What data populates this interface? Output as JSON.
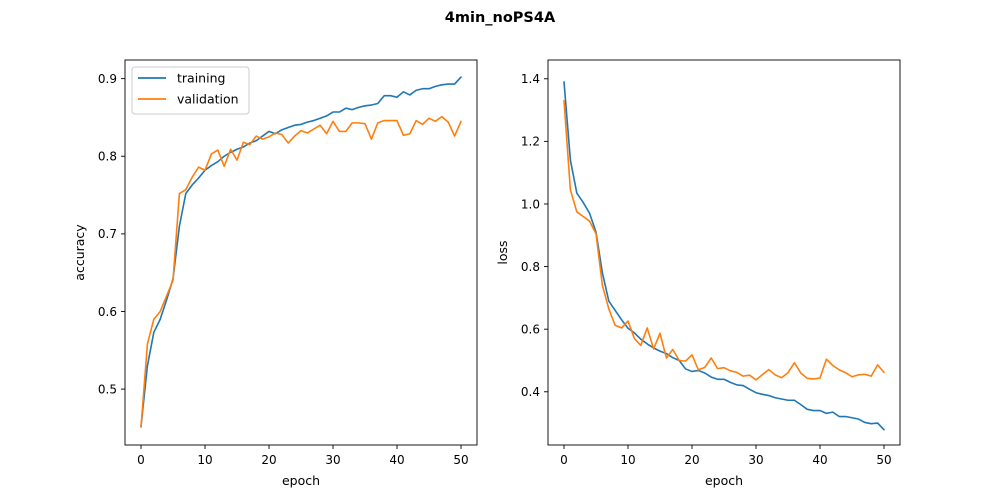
{
  "figure_title": "4min_noPS4A",
  "chart_data": [
    {
      "type": "line",
      "title": "",
      "xlabel": "epoch",
      "ylabel": "accuracy",
      "xlim": [
        -2.5,
        52.5
      ],
      "ylim": [
        0.428,
        0.924
      ],
      "xticks": [
        0,
        10,
        20,
        30,
        40,
        50
      ],
      "yticks": [
        0.5,
        0.6,
        0.7,
        0.8,
        0.9
      ],
      "ytick_labels": [
        "0.5",
        "0.6",
        "0.7",
        "0.8",
        "0.9"
      ],
      "grid": false,
      "legend": "upper-left",
      "x": [
        0,
        1,
        2,
        3,
        4,
        5,
        6,
        7,
        8,
        9,
        10,
        11,
        12,
        13,
        14,
        15,
        16,
        17,
        18,
        19,
        20,
        21,
        22,
        23,
        24,
        25,
        26,
        27,
        28,
        29,
        30,
        31,
        32,
        33,
        34,
        35,
        36,
        37,
        38,
        39,
        40,
        41,
        42,
        43,
        44,
        45,
        46,
        47,
        48,
        49,
        50
      ],
      "series": [
        {
          "name": "training",
          "color": "#1f77b4",
          "values": [
            0.452,
            0.53,
            0.573,
            0.59,
            0.615,
            0.642,
            0.71,
            0.752,
            0.763,
            0.772,
            0.782,
            0.788,
            0.793,
            0.8,
            0.805,
            0.809,
            0.812,
            0.817,
            0.82,
            0.826,
            0.832,
            0.829,
            0.834,
            0.837,
            0.84,
            0.841,
            0.844,
            0.846,
            0.849,
            0.852,
            0.857,
            0.857,
            0.862,
            0.86,
            0.863,
            0.865,
            0.866,
            0.868,
            0.878,
            0.878,
            0.876,
            0.883,
            0.879,
            0.885,
            0.887,
            0.887,
            0.89,
            0.892,
            0.893,
            0.893,
            0.902
          ]
        },
        {
          "name": "validation",
          "color": "#ff7f0e",
          "values": [
            0.451,
            0.558,
            0.59,
            0.6,
            0.62,
            0.64,
            0.752,
            0.757,
            0.773,
            0.786,
            0.782,
            0.803,
            0.808,
            0.787,
            0.809,
            0.795,
            0.818,
            0.815,
            0.826,
            0.822,
            0.825,
            0.83,
            0.828,
            0.817,
            0.826,
            0.833,
            0.83,
            0.835,
            0.84,
            0.829,
            0.845,
            0.832,
            0.832,
            0.843,
            0.843,
            0.842,
            0.822,
            0.843,
            0.846,
            0.846,
            0.846,
            0.827,
            0.829,
            0.846,
            0.841,
            0.849,
            0.845,
            0.851,
            0.844,
            0.826,
            0.845
          ]
        }
      ]
    },
    {
      "type": "line",
      "title": "",
      "xlabel": "epoch",
      "ylabel": "loss",
      "xlim": [
        -2.5,
        52.5
      ],
      "ylim": [
        0.23,
        1.46
      ],
      "xticks": [
        0,
        10,
        20,
        30,
        40,
        50
      ],
      "yticks": [
        0.4,
        0.6,
        0.8,
        1.0,
        1.2,
        1.4
      ],
      "ytick_labels": [
        "0.4",
        "0.6",
        "0.8",
        "1.0",
        "1.2",
        "1.4"
      ],
      "grid": false,
      "legend": "none",
      "x": [
        0,
        1,
        2,
        3,
        4,
        5,
        6,
        7,
        8,
        9,
        10,
        11,
        12,
        13,
        14,
        15,
        16,
        17,
        18,
        19,
        20,
        21,
        22,
        23,
        24,
        25,
        26,
        27,
        28,
        29,
        30,
        31,
        32,
        33,
        34,
        35,
        36,
        37,
        38,
        39,
        40,
        41,
        42,
        43,
        44,
        45,
        46,
        47,
        48,
        49,
        50
      ],
      "series": [
        {
          "name": "training",
          "color": "#1f77b4",
          "values": [
            1.39,
            1.14,
            1.035,
            1.005,
            0.97,
            0.91,
            0.78,
            0.69,
            0.66,
            0.63,
            0.603,
            0.588,
            0.568,
            0.553,
            0.54,
            0.53,
            0.522,
            0.509,
            0.5,
            0.473,
            0.465,
            0.468,
            0.46,
            0.447,
            0.44,
            0.44,
            0.43,
            0.422,
            0.42,
            0.408,
            0.397,
            0.392,
            0.388,
            0.381,
            0.377,
            0.373,
            0.373,
            0.359,
            0.344,
            0.34,
            0.34,
            0.331,
            0.335,
            0.321,
            0.321,
            0.317,
            0.313,
            0.302,
            0.298,
            0.3,
            0.279
          ]
        },
        {
          "name": "validation",
          "color": "#ff7f0e",
          "values": [
            1.33,
            1.045,
            0.975,
            0.96,
            0.945,
            0.905,
            0.74,
            0.665,
            0.612,
            0.604,
            0.626,
            0.57,
            0.548,
            0.604,
            0.537,
            0.587,
            0.508,
            0.535,
            0.5,
            0.498,
            0.518,
            0.47,
            0.478,
            0.508,
            0.474,
            0.477,
            0.467,
            0.462,
            0.45,
            0.453,
            0.438,
            0.455,
            0.471,
            0.454,
            0.445,
            0.461,
            0.493,
            0.46,
            0.443,
            0.441,
            0.444,
            0.504,
            0.484,
            0.47,
            0.461,
            0.448,
            0.454,
            0.456,
            0.45,
            0.486,
            0.462
          ]
        }
      ]
    }
  ]
}
